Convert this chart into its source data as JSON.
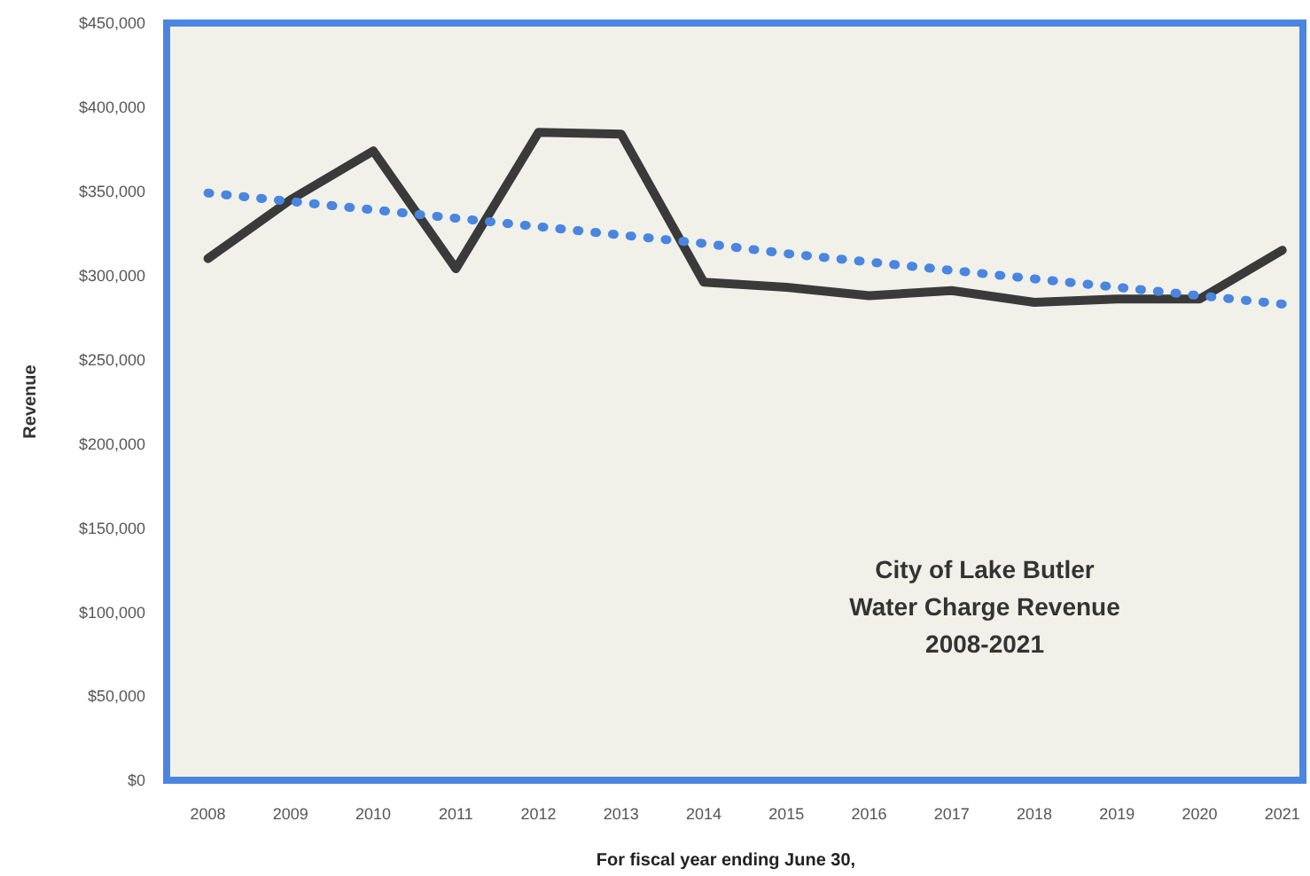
{
  "chart_data": {
    "type": "line",
    "title": "City of Lake Butler\nWater Charge Revenue\n2008-2021",
    "xlabel": "For fiscal year ending June 30,",
    "ylabel": "Revenue",
    "categories": [
      "2008",
      "2009",
      "2010",
      "2011",
      "2012",
      "2013",
      "2014",
      "2015",
      "2016",
      "2017",
      "2018",
      "2019",
      "2020",
      "2021"
    ],
    "series": [
      {
        "color": "#3a3a3a",
        "line_style": "solid",
        "values": [
          310000,
          345000,
          374000,
          304000,
          385000,
          384000,
          296000,
          293000,
          288000,
          291000,
          284000,
          286000,
          286000,
          315000
        ]
      },
      {
        "color": "#4a86e0",
        "line_style": "dotted",
        "values": [
          349000,
          344000,
          339000,
          334000,
          329000,
          324000,
          319000,
          313000,
          308000,
          303000,
          298000,
          293000,
          288000,
          283000
        ]
      }
    ],
    "ylim": [
      0,
      450000
    ],
    "yticks": [
      {
        "value": 0,
        "label": "$0"
      },
      {
        "value": 50000,
        "label": "$50,000"
      },
      {
        "value": 100000,
        "label": "$100,000"
      },
      {
        "value": 150000,
        "label": "$150,000"
      },
      {
        "value": 200000,
        "label": "$200,000"
      },
      {
        "value": 250000,
        "label": "$250,000"
      },
      {
        "value": 300000,
        "label": "$300,000"
      },
      {
        "value": 350000,
        "label": "$350,000"
      },
      {
        "value": 400000,
        "label": "$400,000"
      },
      {
        "value": 450000,
        "label": "$450,000"
      }
    ],
    "grid": false,
    "marker": "none"
  }
}
